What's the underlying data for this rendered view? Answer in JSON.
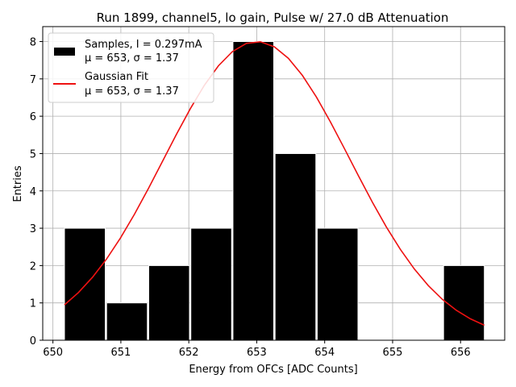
{
  "chart_data": {
    "type": "bar",
    "title": "Run 1899, channel5, lo gain, Pulse w/ 27.0 dB Attenuation",
    "xlabel": "Energy from OFCs [ADC Counts]",
    "ylabel": "Entries",
    "xlim": [
      649.85,
      656.65
    ],
    "ylim": [
      0,
      8.4
    ],
    "xticks": [
      650,
      651,
      652,
      653,
      654,
      655,
      656
    ],
    "yticks": [
      0,
      1,
      2,
      3,
      4,
      5,
      6,
      7,
      8
    ],
    "grid": true,
    "legend_position": "top-left",
    "histogram": {
      "name": "Samples, I = 0.297mA",
      "name_line2": "μ = 653, σ = 1.37",
      "color": "#000000",
      "edge_color": "#ffffff",
      "bins": [
        {
          "x0": 650.17,
          "x1": 650.77,
          "count": 3
        },
        {
          "x0": 650.79,
          "x1": 651.39,
          "count": 1
        },
        {
          "x0": 651.41,
          "x1": 652.01,
          "count": 2
        },
        {
          "x0": 652.03,
          "x1": 652.63,
          "count": 3
        },
        {
          "x0": 652.65,
          "x1": 653.25,
          "count": 8
        },
        {
          "x0": 653.27,
          "x1": 653.87,
          "count": 5
        },
        {
          "x0": 653.89,
          "x1": 654.49,
          "count": 3
        },
        {
          "x0": 654.51,
          "x1": 655.11,
          "count": 0
        },
        {
          "x0": 655.13,
          "x1": 655.73,
          "count": 0
        },
        {
          "x0": 655.75,
          "x1": 656.35,
          "count": 2
        }
      ]
    },
    "fit": {
      "name": "Gaussian Fit",
      "name_line2": "μ = 653, σ = 1.37",
      "color": "#ee1111",
      "mu": 653.0,
      "sigma": 1.37,
      "amplitude": 8.0,
      "x_start": 650.17,
      "x_end": 656.35
    }
  }
}
